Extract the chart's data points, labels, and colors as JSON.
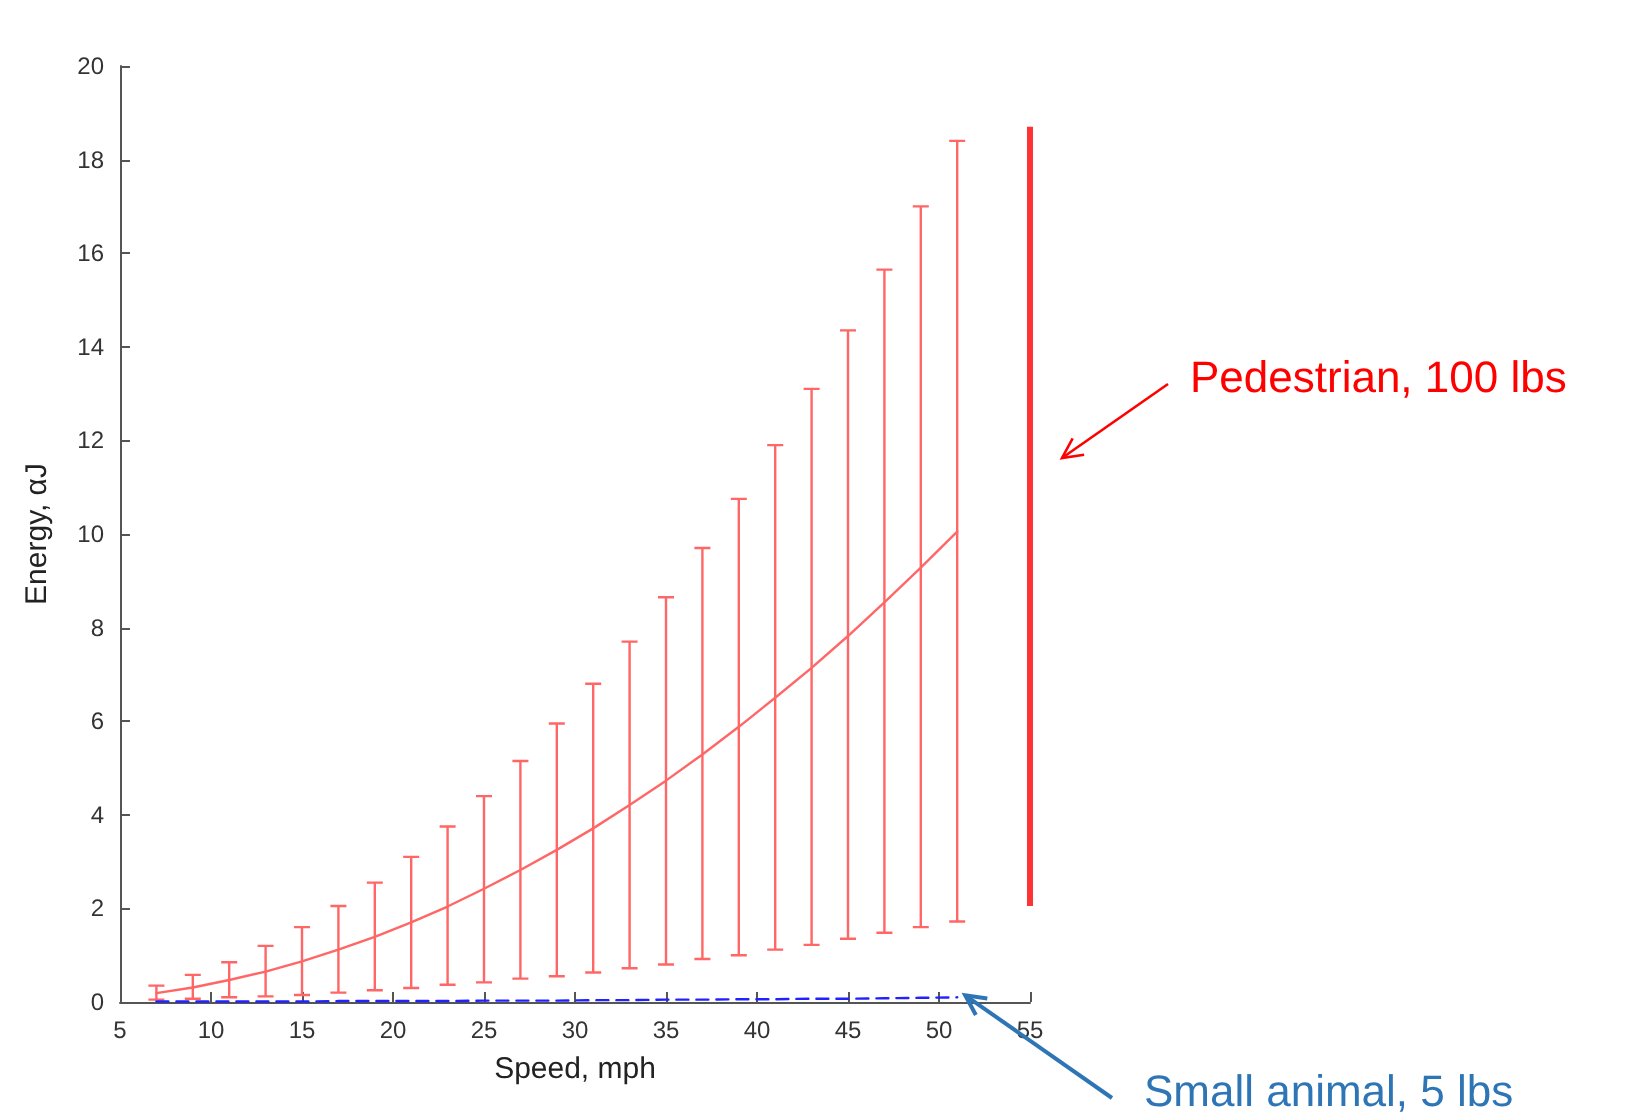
{
  "chart_data": {
    "type": "line",
    "xlabel": "Speed, mph",
    "ylabel": "Energy, αJ",
    "x": [
      7,
      9,
      11,
      13,
      15,
      17,
      19,
      21,
      23,
      25,
      27,
      29,
      31,
      33,
      35,
      37,
      39,
      41,
      43,
      45,
      47,
      49,
      51
    ],
    "series": [
      {
        "color": "#ff6666",
        "line_style": "solid",
        "values": [
          0.19,
          0.31,
          0.47,
          0.65,
          0.87,
          1.12,
          1.39,
          1.7,
          2.04,
          2.42,
          2.82,
          3.25,
          3.71,
          4.21,
          4.73,
          5.29,
          5.88,
          6.5,
          7.14,
          7.82,
          8.54,
          9.28,
          10.05
        ],
        "errors": [
          [
            0.05,
            0.35
          ],
          [
            0.07,
            0.58
          ],
          [
            0.1,
            0.85
          ],
          [
            0.12,
            1.2
          ],
          [
            0.15,
            1.6
          ],
          [
            0.2,
            2.05
          ],
          [
            0.25,
            2.55
          ],
          [
            0.3,
            3.1
          ],
          [
            0.37,
            3.75
          ],
          [
            0.42,
            4.4
          ],
          [
            0.5,
            5.15
          ],
          [
            0.55,
            5.95
          ],
          [
            0.63,
            6.8
          ],
          [
            0.72,
            7.7
          ],
          [
            0.8,
            8.65
          ],
          [
            0.92,
            9.7
          ],
          [
            1.0,
            10.75
          ],
          [
            1.12,
            11.9
          ],
          [
            1.22,
            13.1
          ],
          [
            1.35,
            14.35
          ],
          [
            1.48,
            15.65
          ],
          [
            1.6,
            17.0
          ],
          [
            1.72,
            18.4
          ]
        ]
      },
      {
        "color": "#2222ff",
        "line_style": "dashed",
        "values": [
          0.01,
          0.01,
          0.01,
          0.01,
          0.01,
          0.02,
          0.02,
          0.02,
          0.02,
          0.03,
          0.03,
          0.03,
          0.04,
          0.04,
          0.05,
          0.05,
          0.06,
          0.06,
          0.07,
          0.07,
          0.08,
          0.09,
          0.1
        ]
      },
      {
        "type": "bar",
        "color": "#ff3333",
        "x": [
          55
        ],
        "base": [
          2.05
        ],
        "values": [
          16.65
        ]
      }
    ],
    "annotations": [
      "Pedestrian, 100 lbs",
      {
        "text": "Small animal, 5 lbs",
        "x": 51,
        "y": 0.1
      }
    ],
    "xlim": [
      5,
      55
    ],
    "xticks": [
      5,
      10,
      15,
      20,
      25,
      30,
      35,
      40,
      45,
      50,
      55
    ],
    "ylim": [
      0,
      20
    ],
    "yticks": [
      0,
      2,
      4,
      6,
      8,
      10,
      12,
      14,
      16,
      18,
      20
    ],
    "grid": false,
    "marker": "none"
  }
}
